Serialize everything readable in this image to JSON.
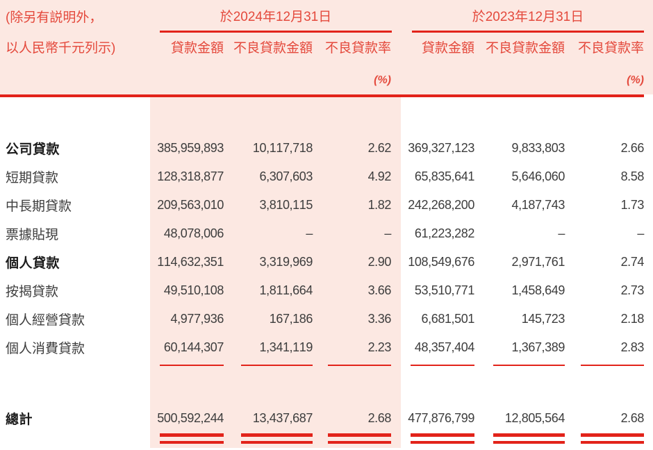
{
  "note": {
    "line1": "(除另有説明外，",
    "line2": "以人民幣千元列示)"
  },
  "columns": {
    "group_2024": "於2024年12月31日",
    "group_2023": "於2023年12月31日",
    "loan_amount": "貸款金額",
    "npl_amount": "不良貸款金額",
    "npl_ratio": "不良貸款率",
    "ratio_unit": "(%)"
  },
  "table": {
    "rows": [
      {
        "label": "公司貸款",
        "bold": true,
        "v": [
          "385,959,893",
          "10,117,718",
          "2.62",
          "369,327,123",
          "9,833,803",
          "2.66"
        ]
      },
      {
        "label": "短期貸款",
        "bold": false,
        "v": [
          "128,318,877",
          "6,307,603",
          "4.92",
          "65,835,641",
          "5,646,060",
          "8.58"
        ]
      },
      {
        "label": "中長期貸款",
        "bold": false,
        "v": [
          "209,563,010",
          "3,810,115",
          "1.82",
          "242,268,200",
          "4,187,743",
          "1.73"
        ]
      },
      {
        "label": "票據貼現",
        "bold": false,
        "v": [
          "48,078,006",
          "–",
          "–",
          "61,223,282",
          "–",
          "–"
        ]
      },
      {
        "label": "個人貸款",
        "bold": true,
        "v": [
          "114,632,351",
          "3,319,969",
          "2.90",
          "108,549,676",
          "2,971,761",
          "2.74"
        ]
      },
      {
        "label": "按揭貸款",
        "bold": false,
        "v": [
          "49,510,108",
          "1,811,664",
          "3.66",
          "53,510,771",
          "1,458,649",
          "2.73"
        ]
      },
      {
        "label": "個人經營貸款",
        "bold": false,
        "v": [
          "4,977,936",
          "167,186",
          "3.36",
          "6,681,501",
          "145,723",
          "2.18"
        ]
      },
      {
        "label": "個人消費貸款",
        "bold": false,
        "v": [
          "60,144,307",
          "1,341,119",
          "2.23",
          "48,357,404",
          "1,367,389",
          "2.83"
        ]
      }
    ],
    "total": {
      "label": "總計",
      "bold": true,
      "v": [
        "500,592,244",
        "13,437,687",
        "2.68",
        "477,876,799",
        "12,805,564",
        "2.68"
      ]
    }
  },
  "colors": {
    "accent_red": "#e2231a",
    "header_text_red": "#e4493c",
    "band_pink": "#fce8e2",
    "body_text": "#3d3d3d"
  }
}
